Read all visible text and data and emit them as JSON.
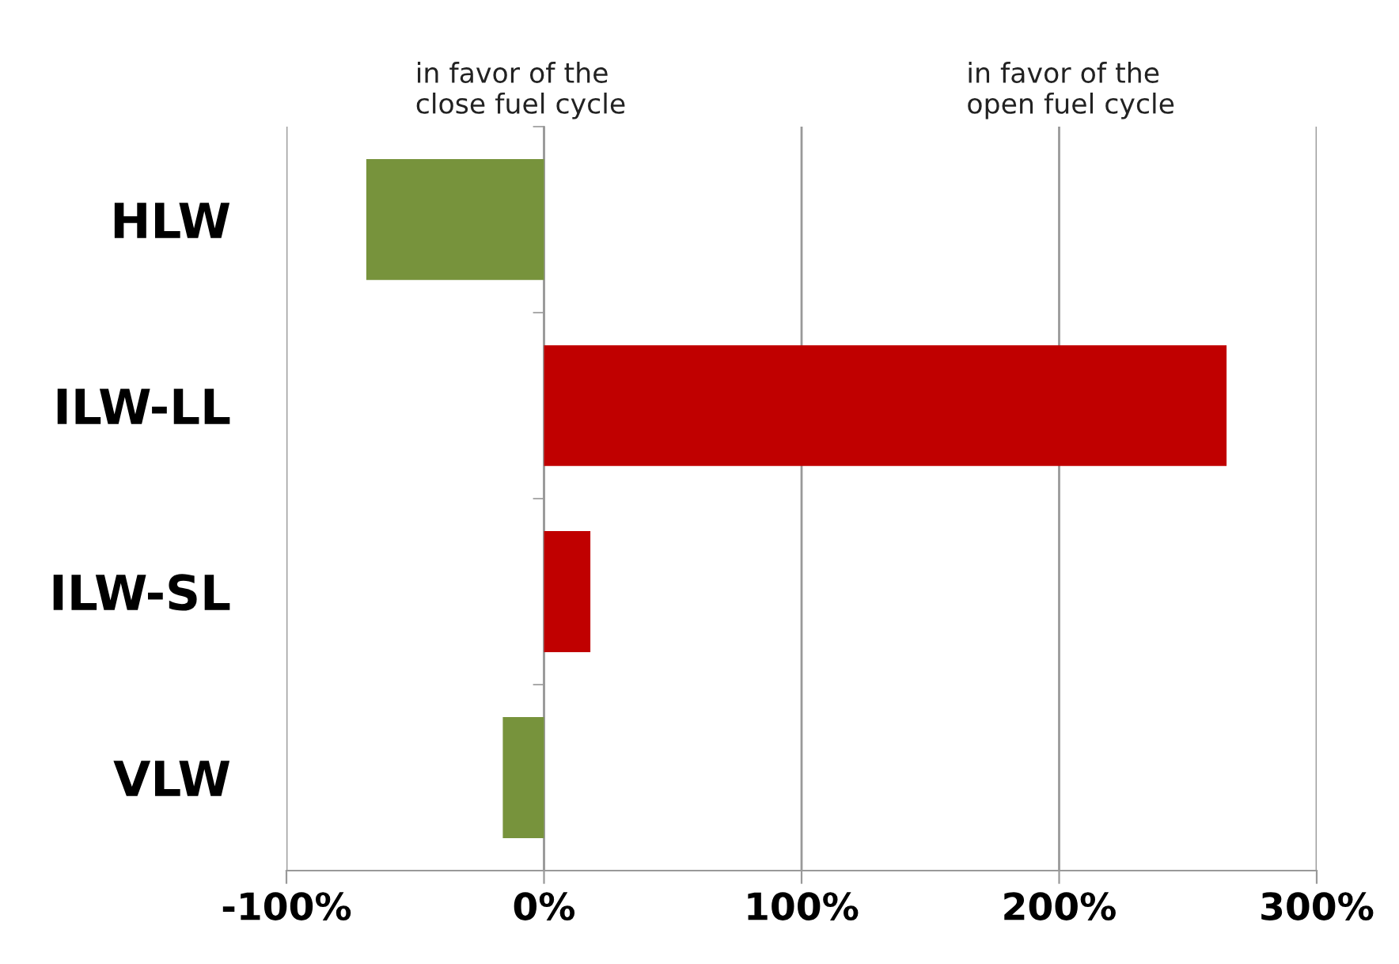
{
  "chart_data": {
    "type": "bar",
    "orientation": "horizontal",
    "categories": [
      "HLW",
      "ILW-LL",
      "ILW-SL",
      "VLW"
    ],
    "values": [
      -69,
      265,
      18,
      -16
    ],
    "colors": [
      "#77933c",
      "#c00000",
      "#c00000",
      "#77933c"
    ],
    "xlim": [
      -100,
      300
    ],
    "xticks": [
      {
        "value": -100,
        "label": "-100%"
      },
      {
        "value": 0,
        "label": "0%"
      },
      {
        "value": 100,
        "label": "100%"
      },
      {
        "value": 200,
        "label": "200%"
      },
      {
        "value": 300,
        "label": "300%"
      }
    ],
    "grid": "x",
    "annotations": [
      "in favor of the\nclose fuel cycle",
      "in favor of the\nopen fuel cycle"
    ]
  }
}
